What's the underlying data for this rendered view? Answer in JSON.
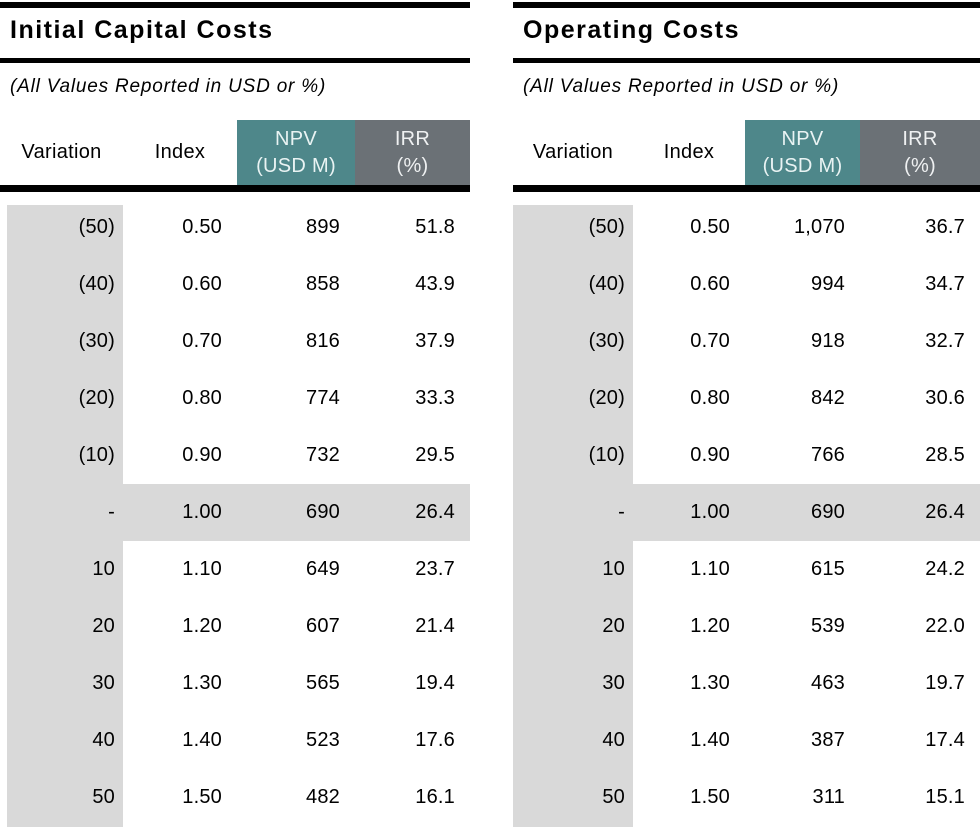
{
  "colors": {
    "npv_header_bg": "#4e878a",
    "irr_header_bg": "#6b7176",
    "variation_band_bg": "#d9d9d9",
    "base_case_highlight_bg": "#d9d9d9",
    "rule_color": "#000000",
    "header_text": "#ffffff"
  },
  "tables": [
    {
      "title": "Initial Capital Costs",
      "note": "(All Values Reported in USD or %)",
      "headers": {
        "variation": "Variation",
        "index": "Index",
        "npv1": "NPV",
        "npv2": "(USD M)",
        "irr1": "IRR",
        "irr2": "(%)"
      },
      "rows": [
        {
          "variation": "(50)",
          "index": "0.50",
          "npv": "899",
          "irr": "51.8",
          "highlight": false
        },
        {
          "variation": "(40)",
          "index": "0.60",
          "npv": "858",
          "irr": "43.9",
          "highlight": false
        },
        {
          "variation": "(30)",
          "index": "0.70",
          "npv": "816",
          "irr": "37.9",
          "highlight": false
        },
        {
          "variation": "(20)",
          "index": "0.80",
          "npv": "774",
          "irr": "33.3",
          "highlight": false
        },
        {
          "variation": "(10)",
          "index": "0.90",
          "npv": "732",
          "irr": "29.5",
          "highlight": false
        },
        {
          "variation": "-",
          "index": "1.00",
          "npv": "690",
          "irr": "26.4",
          "highlight": true
        },
        {
          "variation": "10",
          "index": "1.10",
          "npv": "649",
          "irr": "23.7",
          "highlight": false
        },
        {
          "variation": "20",
          "index": "1.20",
          "npv": "607",
          "irr": "21.4",
          "highlight": false
        },
        {
          "variation": "30",
          "index": "1.30",
          "npv": "565",
          "irr": "19.4",
          "highlight": false
        },
        {
          "variation": "40",
          "index": "1.40",
          "npv": "523",
          "irr": "17.6",
          "highlight": false
        },
        {
          "variation": "50",
          "index": "1.50",
          "npv": "482",
          "irr": "16.1",
          "highlight": false
        }
      ]
    },
    {
      "title": "Operating Costs",
      "note": "(All Values Reported in USD or %)",
      "headers": {
        "variation": "Variation",
        "index": "Index",
        "npv1": "NPV",
        "npv2": "(USD M)",
        "irr1": "IRR",
        "irr2": "(%)"
      },
      "rows": [
        {
          "variation": "(50)",
          "index": "0.50",
          "npv": "1,070",
          "irr": "36.7",
          "highlight": false
        },
        {
          "variation": "(40)",
          "index": "0.60",
          "npv": "994",
          "irr": "34.7",
          "highlight": false
        },
        {
          "variation": "(30)",
          "index": "0.70",
          "npv": "918",
          "irr": "32.7",
          "highlight": false
        },
        {
          "variation": "(20)",
          "index": "0.80",
          "npv": "842",
          "irr": "30.6",
          "highlight": false
        },
        {
          "variation": "(10)",
          "index": "0.90",
          "npv": "766",
          "irr": "28.5",
          "highlight": false
        },
        {
          "variation": "-",
          "index": "1.00",
          "npv": "690",
          "irr": "26.4",
          "highlight": true
        },
        {
          "variation": "10",
          "index": "1.10",
          "npv": "615",
          "irr": "24.2",
          "highlight": false
        },
        {
          "variation": "20",
          "index": "1.20",
          "npv": "539",
          "irr": "22.0",
          "highlight": false
        },
        {
          "variation": "30",
          "index": "1.30",
          "npv": "463",
          "irr": "19.7",
          "highlight": false
        },
        {
          "variation": "40",
          "index": "1.40",
          "npv": "387",
          "irr": "17.4",
          "highlight": false
        },
        {
          "variation": "50",
          "index": "1.50",
          "npv": "311",
          "irr": "15.1",
          "highlight": false
        }
      ]
    }
  ]
}
